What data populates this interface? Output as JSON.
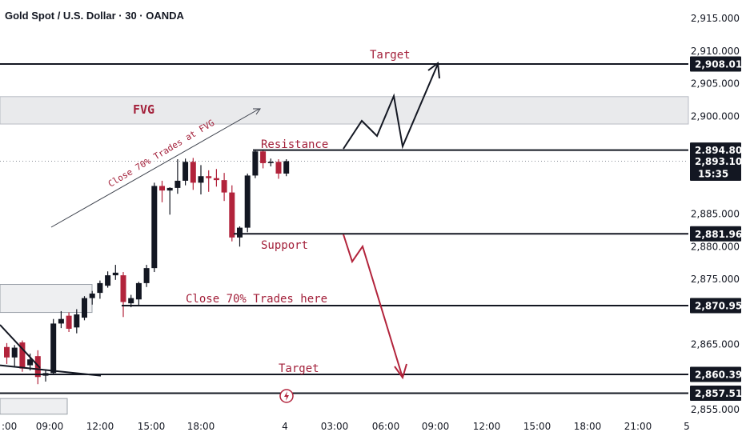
{
  "chart_data": {
    "type": "candlestick",
    "title": "Gold Spot / U.S. Dollar · 30 · OANDA",
    "price_ticks": [
      2915,
      2910,
      2905,
      2900,
      2885,
      2880,
      2875,
      2865,
      2855
    ],
    "price_tick_labels": [
      "2,915.000",
      "2,910.000",
      "2,905.000",
      "2,900.000",
      "2,885.000",
      "2,880.000",
      "2,875.000",
      "2,865.000",
      "2,855.000"
    ],
    "time_labels": [
      ":00",
      "09:00",
      "12:00",
      "15:00",
      "18:00",
      "4",
      "03:00",
      "06:00",
      "09:00",
      "12:00",
      "15:00",
      "18:00",
      "21:00",
      "5"
    ],
    "levels": [
      {
        "name": "target-upper",
        "price": 2908.011,
        "label": "2,908.011"
      },
      {
        "name": "resistance",
        "price": 2894.802,
        "label": "2,894.802"
      },
      {
        "name": "last-price",
        "price": 2893.105,
        "label": "2,893.105",
        "countdown": "15:35"
      },
      {
        "name": "support",
        "price": 2881.96,
        "label": "2,881.960"
      },
      {
        "name": "close-70-level",
        "price": 2870.951,
        "label": "2,870.951"
      },
      {
        "name": "target-lower",
        "price": 2860.394,
        "label": "2,860.394"
      },
      {
        "name": "lower-line",
        "price": 2857.513,
        "label": "2,857.513"
      }
    ],
    "fvg_zone": [
      2898.8,
      2903.0
    ],
    "annotations": {
      "target_top": "Target",
      "fvg": "FVG",
      "close_fvg": "Close 70% Trades at FVG",
      "resistance": "Resistance",
      "support": "Support",
      "close_here": "Close 70% Trades here",
      "target_bottom": "Target"
    },
    "candles": [
      {
        "o": 2864.6,
        "h": 2865.2,
        "l": 2862.0,
        "c": 2863.0
      },
      {
        "o": 2863.0,
        "h": 2864.9,
        "l": 2861.5,
        "c": 2864.5
      },
      {
        "o": 2865.3,
        "h": 2865.6,
        "l": 2860.8,
        "c": 2861.3
      },
      {
        "o": 2861.8,
        "h": 2863.6,
        "l": 2861.0,
        "c": 2862.7
      },
      {
        "o": 2863.2,
        "h": 2864.1,
        "l": 2858.9,
        "c": 2860.0
      },
      {
        "o": 2860.2,
        "h": 2861.2,
        "l": 2859.3,
        "c": 2860.6
      },
      {
        "o": 2860.6,
        "h": 2868.9,
        "l": 2860.3,
        "c": 2868.2
      },
      {
        "o": 2868.2,
        "h": 2870.1,
        "l": 2867.5,
        "c": 2868.9
      },
      {
        "o": 2869.4,
        "h": 2869.9,
        "l": 2866.9,
        "c": 2867.4
      },
      {
        "o": 2867.6,
        "h": 2870.4,
        "l": 2866.7,
        "c": 2869.6
      },
      {
        "o": 2869.1,
        "h": 2872.4,
        "l": 2868.7,
        "c": 2872.1
      },
      {
        "o": 2872.1,
        "h": 2873.2,
        "l": 2871.1,
        "c": 2872.8
      },
      {
        "o": 2872.9,
        "h": 2874.8,
        "l": 2872.0,
        "c": 2874.4
      },
      {
        "o": 2874.0,
        "h": 2876.2,
        "l": 2873.7,
        "c": 2875.6
      },
      {
        "o": 2875.6,
        "h": 2877.2,
        "l": 2874.9,
        "c": 2876.0
      },
      {
        "o": 2875.6,
        "h": 2876.1,
        "l": 2869.2,
        "c": 2871.5
      },
      {
        "o": 2871.3,
        "h": 2872.6,
        "l": 2870.7,
        "c": 2872.1
      },
      {
        "o": 2871.9,
        "h": 2874.6,
        "l": 2871.0,
        "c": 2874.4
      },
      {
        "o": 2874.4,
        "h": 2877.2,
        "l": 2873.8,
        "c": 2876.7
      },
      {
        "o": 2876.7,
        "h": 2889.8,
        "l": 2876.1,
        "c": 2889.3
      },
      {
        "o": 2889.3,
        "h": 2890.1,
        "l": 2886.8,
        "c": 2888.6
      },
      {
        "o": 2888.6,
        "h": 2889.1,
        "l": 2884.9,
        "c": 2889.0
      },
      {
        "o": 2889.0,
        "h": 2893.4,
        "l": 2888.1,
        "c": 2890.1
      },
      {
        "o": 2890.1,
        "h": 2893.5,
        "l": 2889.4,
        "c": 2893.0
      },
      {
        "o": 2893.0,
        "h": 2893.6,
        "l": 2888.7,
        "c": 2889.8
      },
      {
        "o": 2889.8,
        "h": 2892.5,
        "l": 2888.0,
        "c": 2890.8
      },
      {
        "o": 2890.8,
        "h": 2891.7,
        "l": 2888.4,
        "c": 2890.5
      },
      {
        "o": 2890.5,
        "h": 2891.9,
        "l": 2889.2,
        "c": 2890.2
      },
      {
        "o": 2890.2,
        "h": 2891.3,
        "l": 2887.0,
        "c": 2888.3
      },
      {
        "o": 2888.3,
        "h": 2889.4,
        "l": 2880.8,
        "c": 2881.4
      },
      {
        "o": 2881.4,
        "h": 2883.1,
        "l": 2880.0,
        "c": 2882.9
      },
      {
        "o": 2882.9,
        "h": 2891.2,
        "l": 2882.2,
        "c": 2890.9
      },
      {
        "o": 2890.9,
        "h": 2894.9,
        "l": 2890.5,
        "c": 2894.6
      },
      {
        "o": 2894.6,
        "h": 2894.9,
        "l": 2892.0,
        "c": 2892.8
      },
      {
        "o": 2892.8,
        "h": 2893.5,
        "l": 2892.3,
        "c": 2893.0
      },
      {
        "o": 2893.0,
        "h": 2893.4,
        "l": 2890.4,
        "c": 2891.2
      },
      {
        "o": 2891.2,
        "h": 2893.4,
        "l": 2890.8,
        "c": 2893.1
      }
    ],
    "colors": {
      "bull": "#131722",
      "bear": "#b2233b",
      "annot": "#a3203a",
      "grid": "#f0f3fa"
    }
  }
}
